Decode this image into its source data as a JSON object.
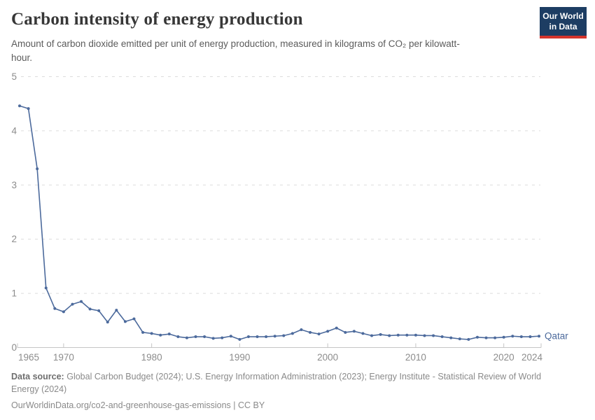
{
  "header": {
    "title": "Carbon intensity of energy production",
    "subtitle": "Amount of carbon dioxide emitted per unit of energy production, measured in kilograms of CO₂ per kilowatt-hour.",
    "logo_line1": "Our World",
    "logo_line2": "in Data"
  },
  "chart_data": {
    "type": "line",
    "title": "Carbon intensity of energy production",
    "xlabel": "",
    "ylabel": "",
    "xlim": [
      1965,
      2024
    ],
    "ylim": [
      0,
      5
    ],
    "y_ticks": [
      0,
      1,
      2,
      3,
      4,
      5
    ],
    "x_ticks": [
      1965,
      1970,
      1980,
      1990,
      2000,
      2010,
      2020,
      2024
    ],
    "grid": "horizontal-dashed",
    "legend_position": "end-of-line",
    "line_color": "#4c6a9c",
    "series": [
      {
        "name": "Qatar",
        "x": [
          1965,
          1966,
          1967,
          1968,
          1969,
          1970,
          1971,
          1972,
          1973,
          1974,
          1975,
          1976,
          1977,
          1978,
          1979,
          1980,
          1981,
          1982,
          1983,
          1984,
          1985,
          1986,
          1987,
          1988,
          1989,
          1990,
          1991,
          1992,
          1993,
          1994,
          1995,
          1996,
          1997,
          1998,
          1999,
          2000,
          2001,
          2002,
          2003,
          2004,
          2005,
          2006,
          2007,
          2008,
          2009,
          2010,
          2011,
          2012,
          2013,
          2014,
          2015,
          2016,
          2017,
          2018,
          2019,
          2020,
          2021,
          2022,
          2023,
          2024
        ],
        "values": [
          4.46,
          4.41,
          3.3,
          1.1,
          0.72,
          0.66,
          0.8,
          0.85,
          0.71,
          0.68,
          0.47,
          0.69,
          0.48,
          0.53,
          0.28,
          0.26,
          0.23,
          0.25,
          0.2,
          0.18,
          0.2,
          0.2,
          0.17,
          0.18,
          0.21,
          0.15,
          0.2,
          0.2,
          0.2,
          0.21,
          0.22,
          0.26,
          0.33,
          0.28,
          0.25,
          0.3,
          0.36,
          0.28,
          0.3,
          0.26,
          0.22,
          0.24,
          0.22,
          0.23,
          0.23,
          0.23,
          0.22,
          0.22,
          0.2,
          0.18,
          0.16,
          0.15,
          0.19,
          0.18,
          0.18,
          0.19,
          0.21,
          0.2,
          0.2,
          0.21
        ]
      }
    ]
  },
  "footer": {
    "source_label": "Data source:",
    "source_text": "Global Carbon Budget (2024); U.S. Energy Information Administration (2023); Energy Institute - Statistical Review of World Energy (2024)",
    "citation": "OurWorldinData.org/co2-and-greenhouse-gas-emissions | CC BY"
  }
}
